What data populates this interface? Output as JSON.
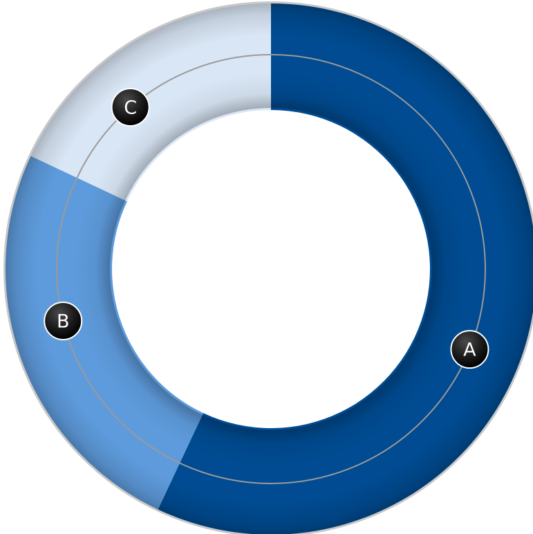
{
  "chart_data": {
    "type": "pie",
    "variant": "donut",
    "slices": [
      {
        "label": "A",
        "value": 57,
        "color": "#004B91"
      },
      {
        "label": "B",
        "value": 25,
        "color": "#5E9BDC"
      },
      {
        "label": "C",
        "value": 18,
        "color": "#D9E6F5"
      }
    ],
    "start_angle_deg": 0,
    "direction": "clockwise",
    "marker_color": "#111111",
    "guide_ring": true,
    "guide_color": "#9A9A9A",
    "title": "",
    "legend": "none"
  }
}
